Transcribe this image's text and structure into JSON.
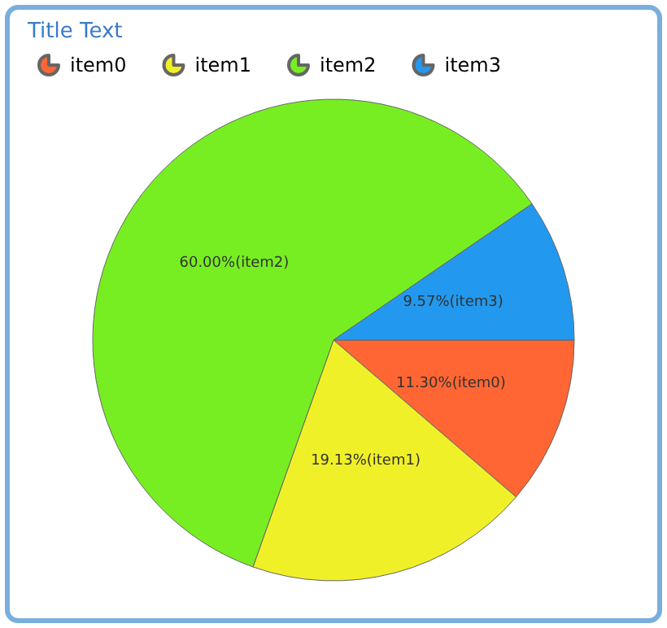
{
  "chart_data": {
    "type": "pie",
    "title": "Title Text",
    "categories": [
      "item0",
      "item1",
      "item2",
      "item3"
    ],
    "values": [
      11.3,
      19.13,
      60.0,
      9.57
    ],
    "colors": [
      "#ff6633",
      "#f0f028",
      "#77ee22",
      "#2299ee"
    ],
    "value_labels": [
      "11.30%(item0)",
      "19.13%(item1)",
      "60.00%(item2)",
      "9.57%(item3)"
    ],
    "legend": "top left"
  }
}
